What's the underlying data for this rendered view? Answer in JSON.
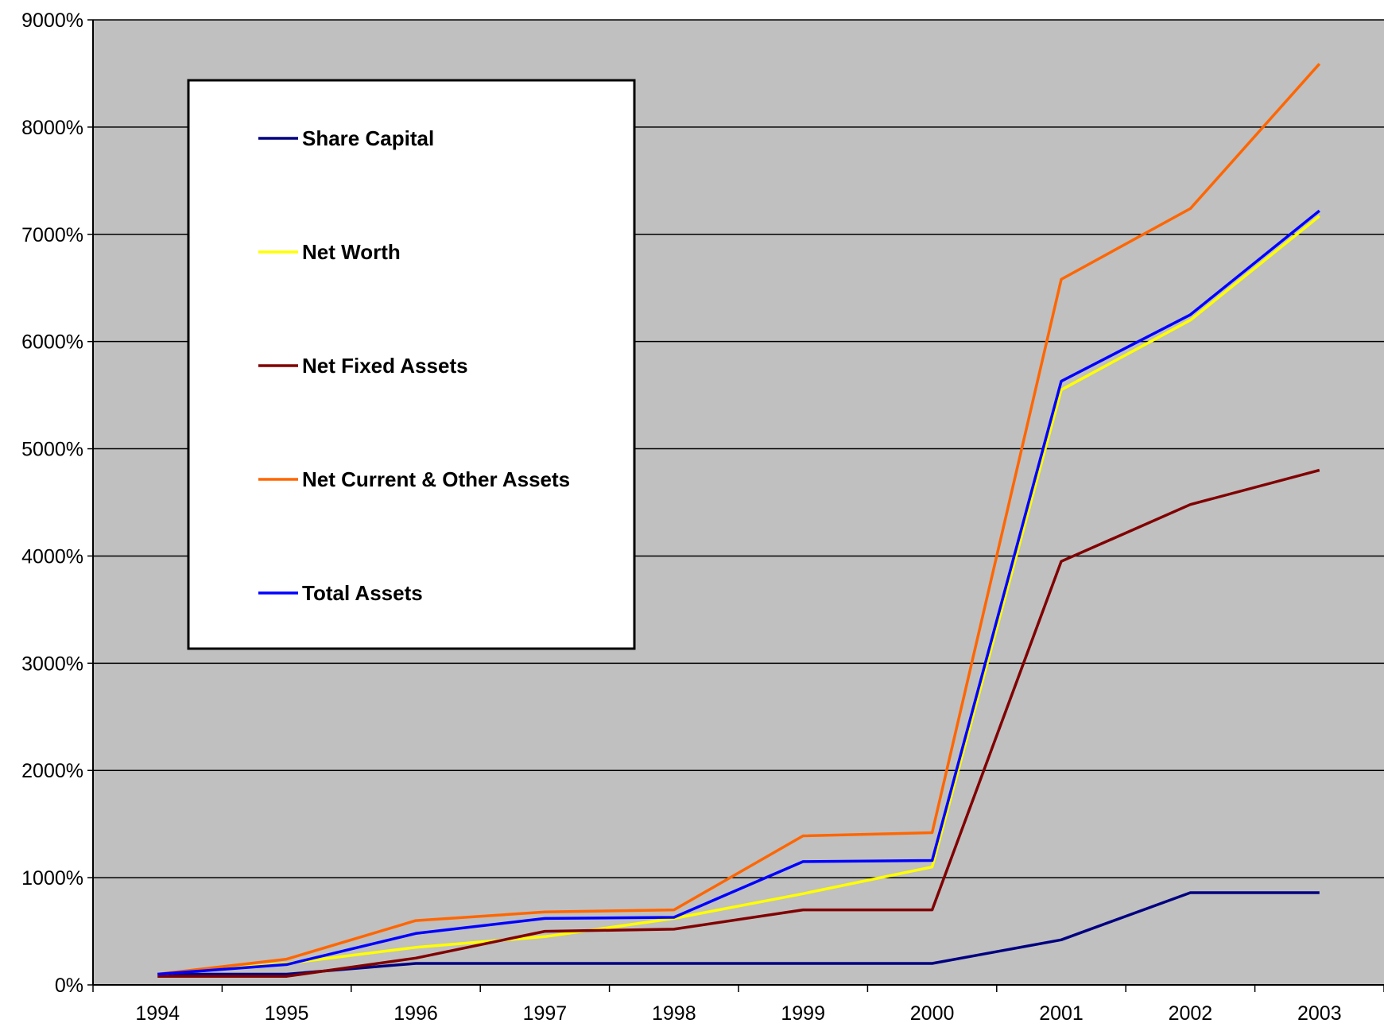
{
  "chart_data": {
    "type": "line",
    "x": [
      "1994",
      "1995",
      "1996",
      "1997",
      "1998",
      "1999",
      "2000",
      "2001",
      "2002",
      "2003"
    ],
    "ylim": [
      0,
      9000
    ],
    "yticks": [
      0,
      1000,
      2000,
      3000,
      4000,
      5000,
      6000,
      7000,
      8000,
      9000
    ],
    "ytick_labels": [
      "0%",
      "1000%",
      "2000%",
      "3000%",
      "4000%",
      "5000%",
      "6000%",
      "7000%",
      "8000%",
      "9000%"
    ],
    "grid": true,
    "legend_position": "top-left",
    "plot_background": "#C0C0C0",
    "series": [
      {
        "name": "Share Capital",
        "color": "#000080",
        "values": [
          100,
          100,
          200,
          200,
          200,
          200,
          200,
          420,
          860,
          860
        ]
      },
      {
        "name": "Net Worth",
        "color": "#FFFF00",
        "values": [
          100,
          200,
          350,
          450,
          620,
          850,
          1100,
          5550,
          6200,
          7170
        ]
      },
      {
        "name": "Net Fixed Assets",
        "color": "#800000",
        "values": [
          80,
          80,
          250,
          500,
          520,
          700,
          700,
          3950,
          4480,
          4800
        ]
      },
      {
        "name": "Net Current & Other Assets",
        "color": "#FF6600",
        "values": [
          100,
          240,
          600,
          680,
          700,
          1390,
          1420,
          6580,
          7240,
          8590
        ]
      },
      {
        "name": "Total Assets",
        "color": "#0000FF",
        "values": [
          100,
          190,
          480,
          620,
          630,
          1150,
          1160,
          5630,
          6250,
          7220
        ]
      }
    ]
  }
}
